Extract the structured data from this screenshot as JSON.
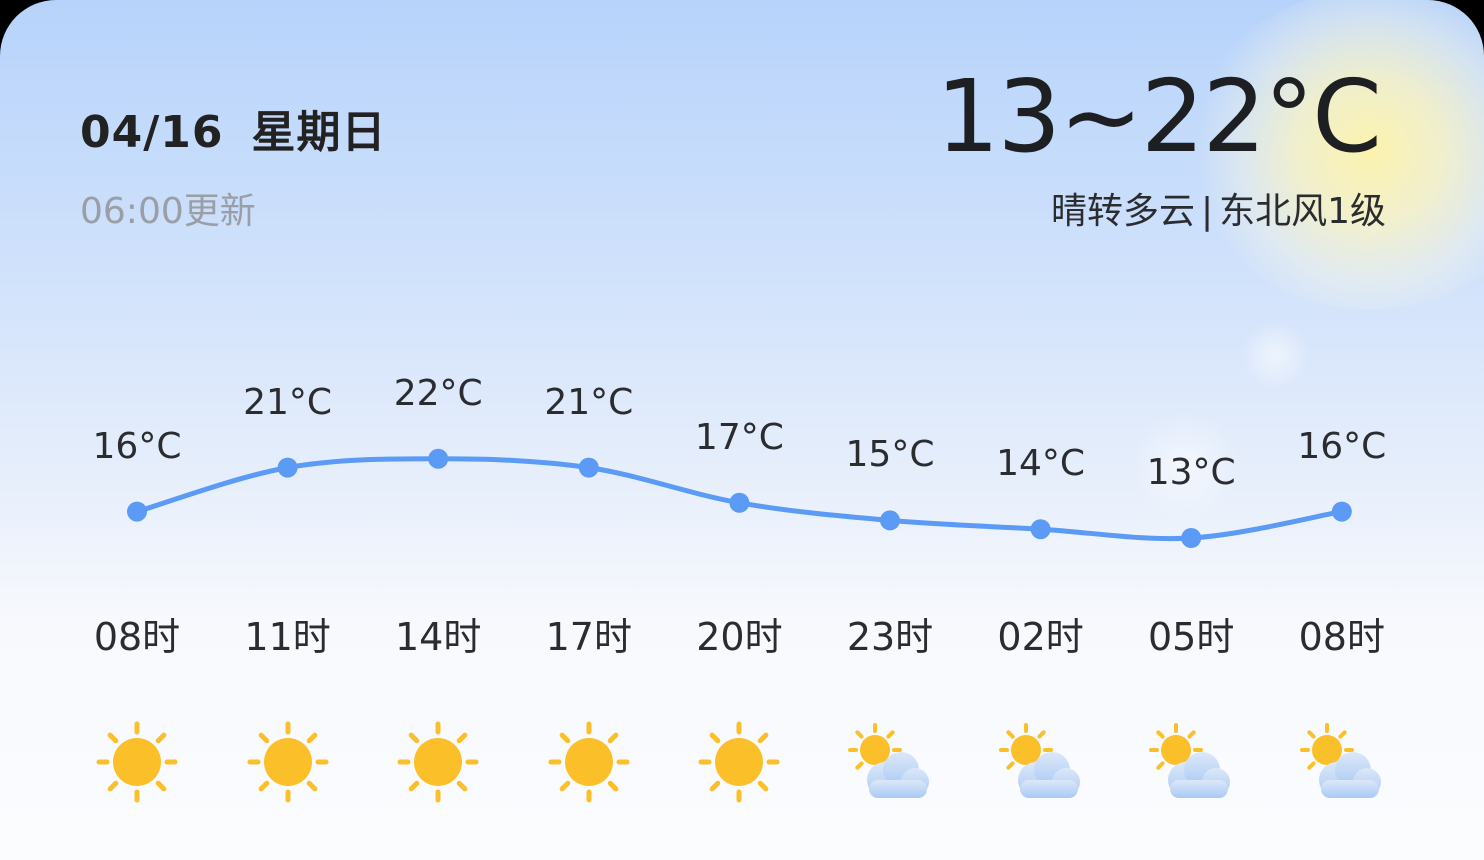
{
  "header": {
    "date": "04/16",
    "weekday": "星期日",
    "update_time": "06:00更新",
    "temp_range": "13~22°C",
    "condition": "晴转多云",
    "separator": "|",
    "wind": "东北风1级"
  },
  "colors": {
    "line": "#5b9bf5",
    "sun": "#fbbf2a",
    "cloud": "#a9c9f5"
  },
  "chart_data": {
    "type": "line",
    "categories": [
      "08时",
      "11时",
      "14时",
      "17时",
      "20时",
      "23时",
      "02时",
      "05时",
      "08时"
    ],
    "series": [
      {
        "values": [
          16,
          21,
          22,
          21,
          17,
          15,
          14,
          13,
          16
        ]
      }
    ],
    "labels": [
      "16°C",
      "21°C",
      "22°C",
      "21°C",
      "17°C",
      "15°C",
      "14°C",
      "13°C",
      "16°C"
    ],
    "icons": [
      "sunny-icon",
      "sunny-icon",
      "sunny-icon",
      "sunny-icon",
      "sunny-icon",
      "partly-cloudy-icon",
      "partly-cloudy-icon",
      "partly-cloudy-icon",
      "partly-cloudy-icon"
    ]
  }
}
